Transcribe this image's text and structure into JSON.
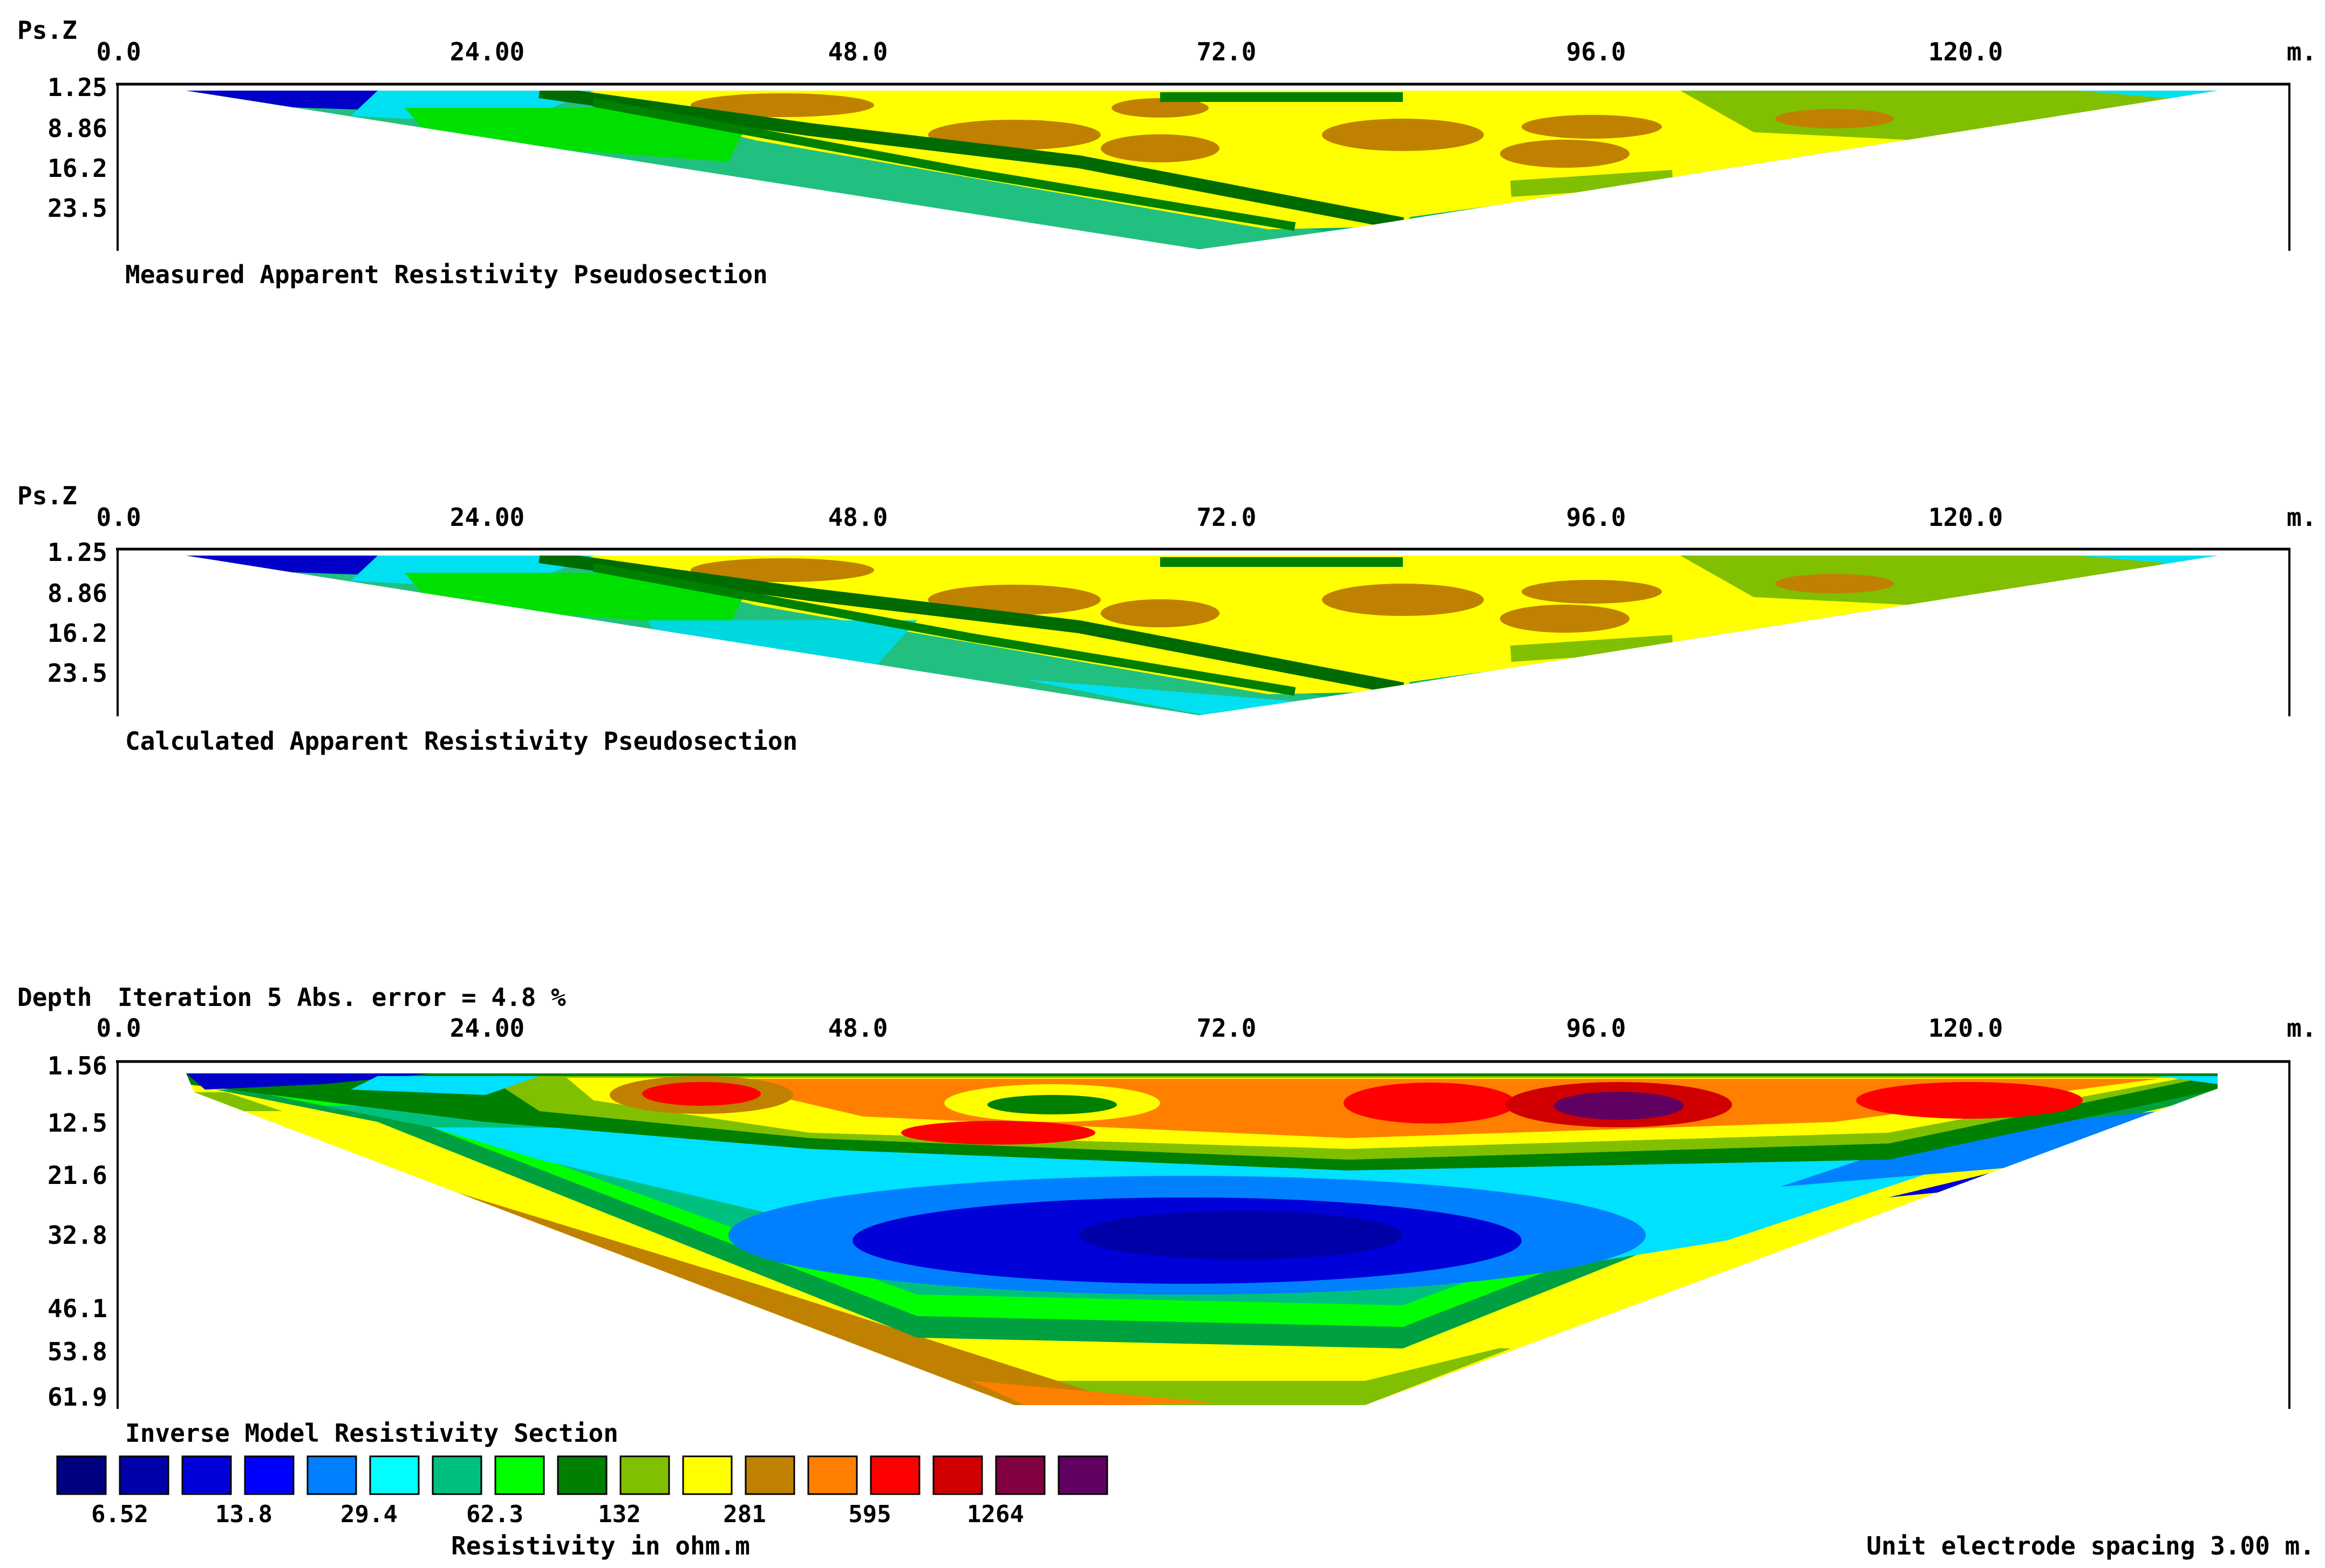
{
  "units_label": "m.",
  "panels": [
    {
      "id": "measured",
      "axis_label": "Ps.Z",
      "x_ticks": [
        "0.0",
        "24.00",
        "48.0",
        "72.0",
        "96.0",
        "120.0"
      ],
      "depth_ticks": [
        "1.25",
        "8.86",
        "16.2",
        "23.5"
      ],
      "caption": "Measured Apparent Resistivity Pseudosection"
    },
    {
      "id": "calculated",
      "axis_label": "Ps.Z",
      "x_ticks": [
        "0.0",
        "24.00",
        "48.0",
        "72.0",
        "96.0",
        "120.0"
      ],
      "depth_ticks": [
        "1.25",
        "8.86",
        "16.2",
        "23.5"
      ],
      "caption": "Calculated Apparent Resistivity Pseudosection"
    },
    {
      "id": "inverse",
      "axis_label": "Depth",
      "iteration_note": "Iteration 5 Abs. error = 4.8 %",
      "x_ticks": [
        "0.0",
        "24.00",
        "48.0",
        "72.0",
        "96.0",
        "120.0"
      ],
      "depth_ticks": [
        "1.56",
        "12.5",
        "21.6",
        "32.8",
        "46.1",
        "53.8",
        "61.9"
      ],
      "caption": "Inverse Model Resistivity Section"
    }
  ],
  "legend": {
    "colors": [
      "#000080",
      "#0000A8",
      "#0000D8",
      "#0000FF",
      "#0080FF",
      "#00FFFF",
      "#00C080",
      "#00FF00",
      "#008000",
      "#80C000",
      "#FFFF00",
      "#C08000",
      "#FF8000",
      "#FF0000",
      "#D00000",
      "#800040",
      "#600060"
    ],
    "labels": [
      "6.52",
      "13.8",
      "29.4",
      "62.3",
      "132",
      "281",
      "595",
      "1264"
    ],
    "title": "Resistivity in ohm.m"
  },
  "footer_note": "Unit electrode spacing 3.00 m.",
  "chart_data": [
    {
      "type": "heatmap",
      "title": "Measured Apparent Resistivity Pseudosection",
      "ylabel": "Ps.Z",
      "xlim": [
        0,
        144
      ],
      "x_ticks": [
        0,
        24,
        48,
        72,
        96,
        120
      ],
      "y_ticks": [
        1.25,
        8.86,
        16.2,
        23.5
      ],
      "y_inverted": true
    },
    {
      "type": "heatmap",
      "title": "Calculated Apparent Resistivity Pseudosection",
      "ylabel": "Ps.Z",
      "xlim": [
        0,
        144
      ],
      "x_ticks": [
        0,
        24,
        48,
        72,
        96,
        120
      ],
      "y_ticks": [
        1.25,
        8.86,
        16.2,
        23.5
      ],
      "y_inverted": true
    },
    {
      "type": "heatmap",
      "title": "Inverse Model Resistivity Section",
      "ylabel": "Depth",
      "xlim": [
        0,
        144
      ],
      "x_ticks": [
        0,
        24,
        48,
        72,
        96,
        120
      ],
      "y_ticks": [
        1.56,
        12.5,
        21.6,
        32.8,
        46.1,
        53.8,
        61.9
      ],
      "y_inverted": true,
      "color_scale_values": [
        6.52,
        13.8,
        29.4,
        62.3,
        132,
        281,
        595,
        1264
      ],
      "color_scale_unit": "ohm.m"
    }
  ]
}
